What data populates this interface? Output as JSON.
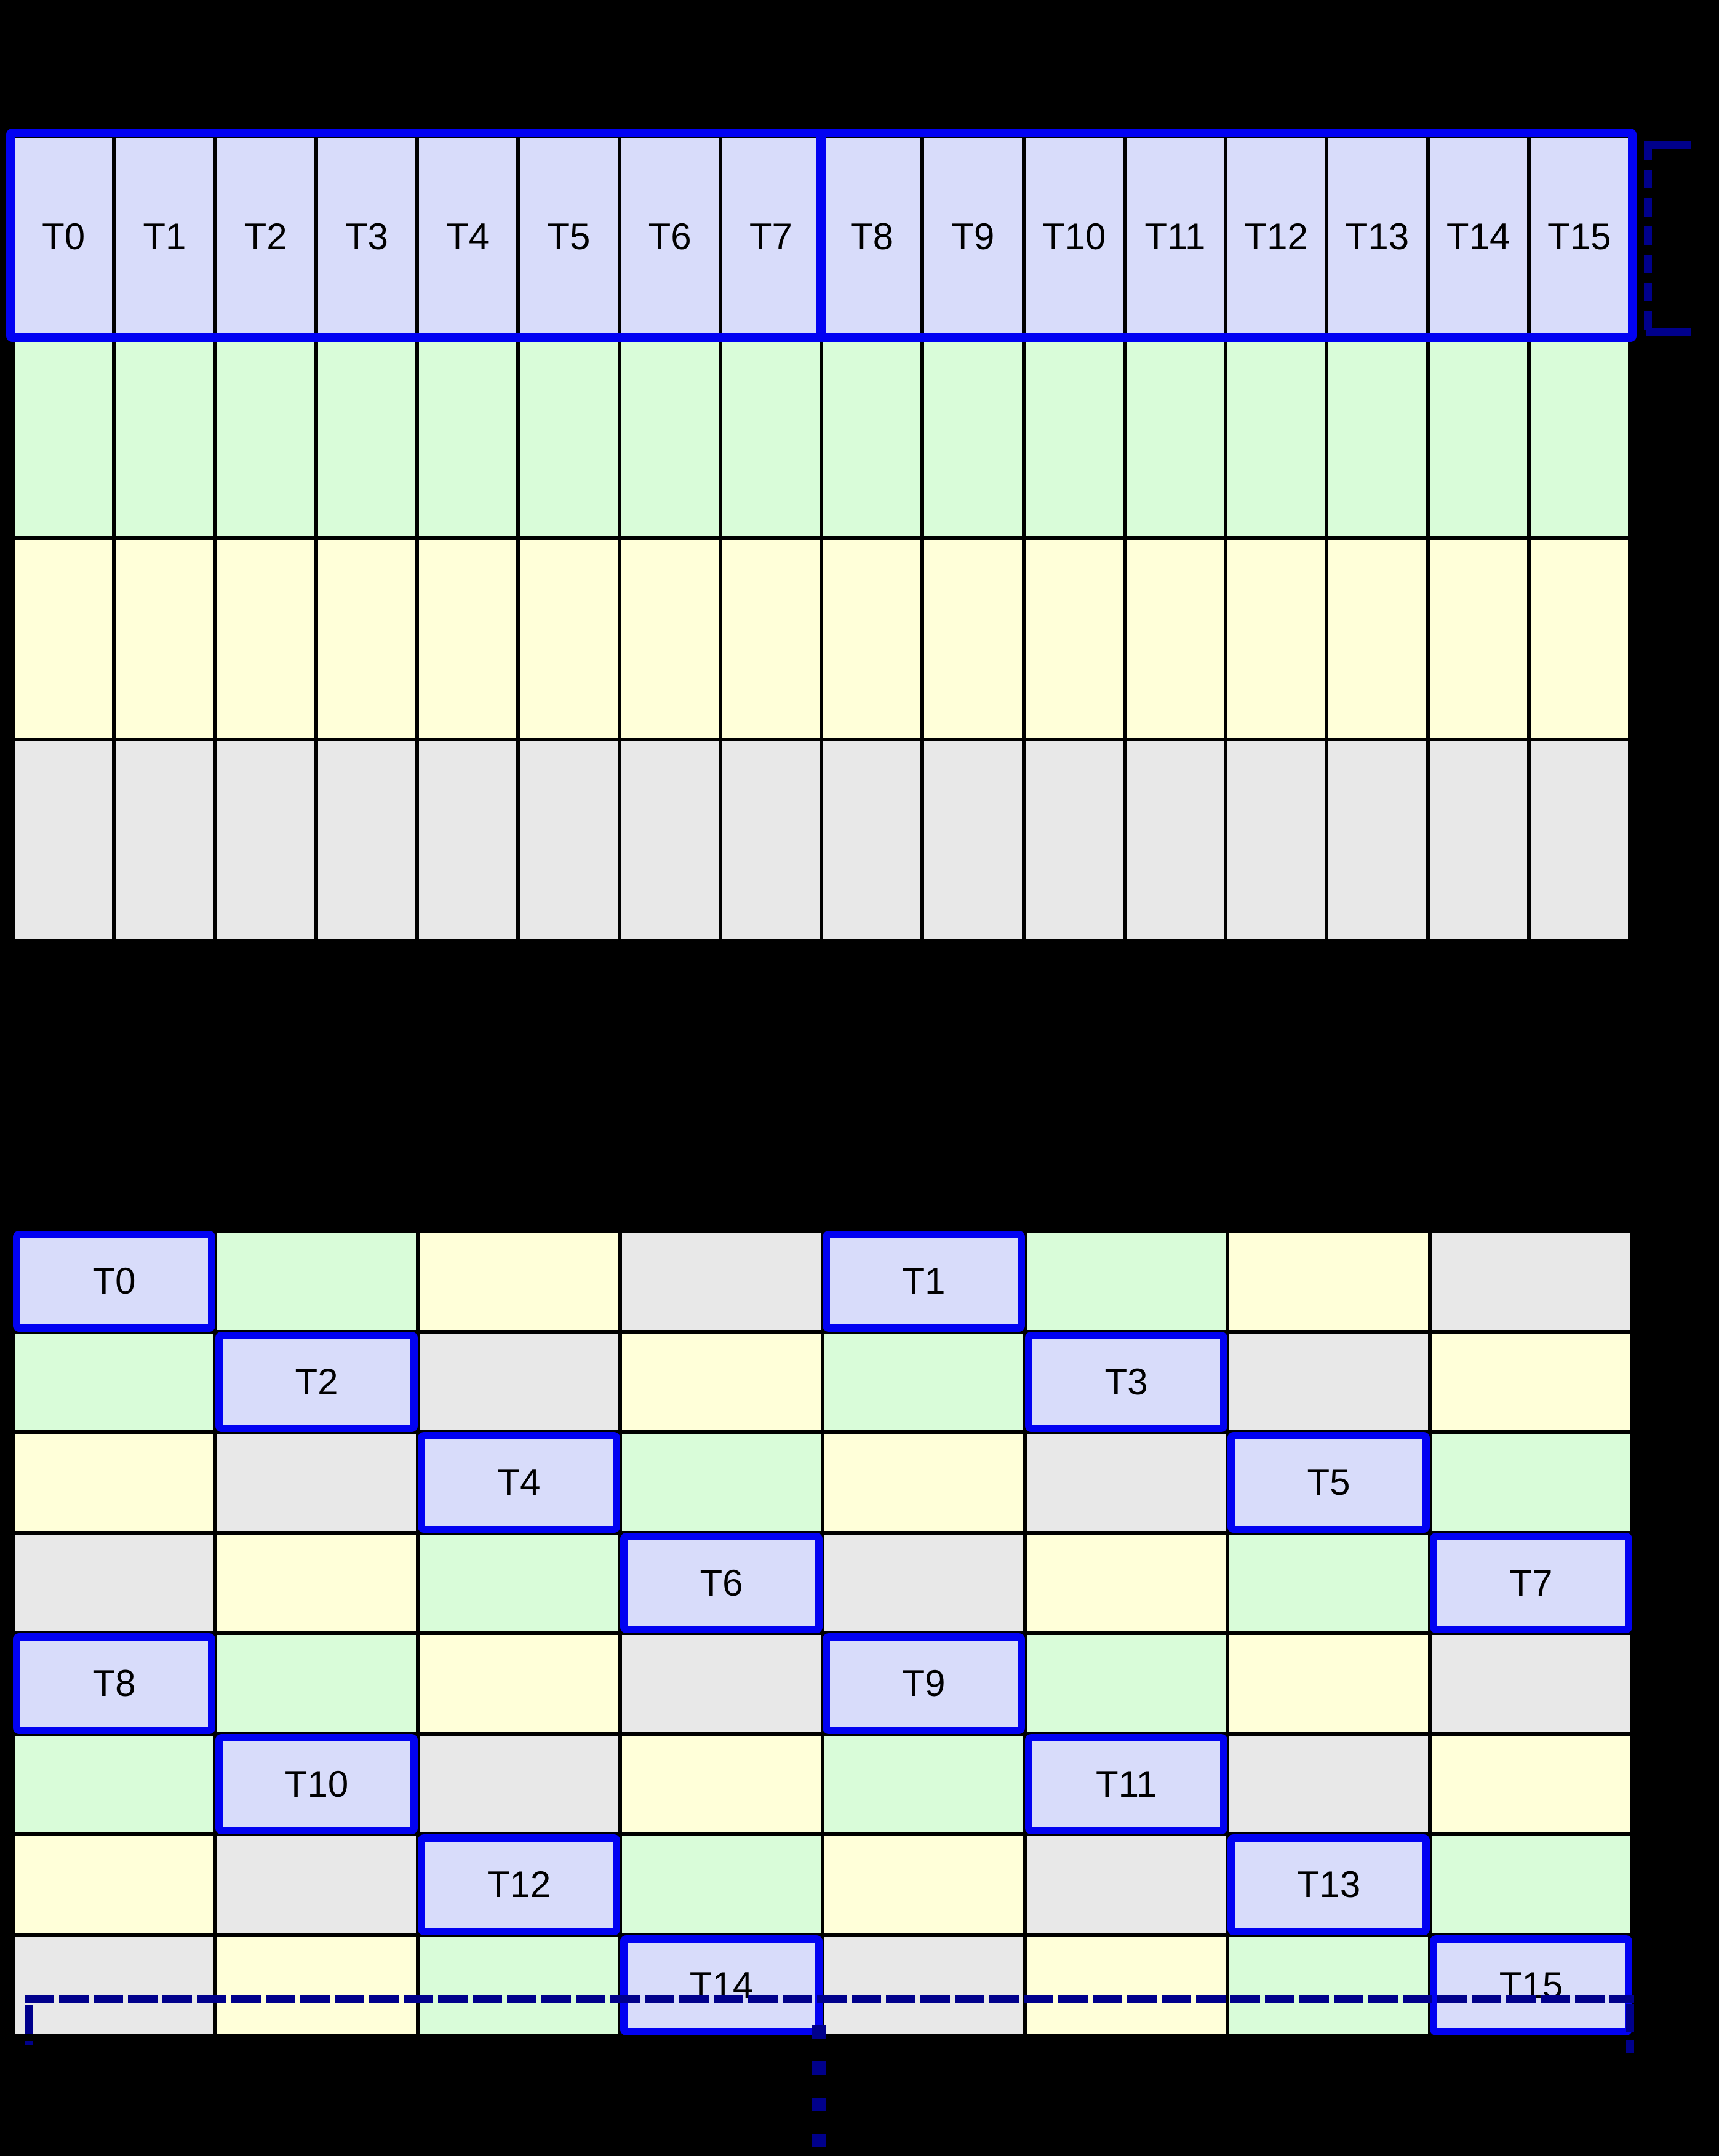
{
  "colors": {
    "thread": "#d8dcfa",
    "green": "#d9fcd9",
    "yellow": "#ffffd9",
    "gray": "#e8e8e8",
    "warp_outline_blue": "#0202f2",
    "bracket_navy": "#00008b",
    "grid_line": "#000000",
    "background": "#000000",
    "label_text": "#000000"
  },
  "top_grid": {
    "columns": 16,
    "thread_labels": [
      "T0",
      "T1",
      "T2",
      "T3",
      "T4",
      "T5",
      "T6",
      "T7",
      "T8",
      "T9",
      "T10",
      "T11",
      "T12",
      "T13",
      "T14",
      "T15"
    ],
    "warp_group_size": 8,
    "warp_group_count": 2,
    "rows": [
      {
        "name": "thread-row",
        "color": "thread"
      },
      {
        "name": "memory-row-green",
        "color": "green"
      },
      {
        "name": "memory-row-yellow",
        "color": "yellow"
      },
      {
        "name": "memory-row-gray",
        "color": "gray"
      }
    ]
  },
  "bottom_grid": {
    "columns": 8,
    "rows": [
      [
        {
          "color": "thread",
          "label": "T0"
        },
        {
          "color": "green"
        },
        {
          "color": "yellow"
        },
        {
          "color": "gray"
        },
        {
          "color": "thread",
          "label": "T1"
        },
        {
          "color": "green"
        },
        {
          "color": "yellow"
        },
        {
          "color": "gray"
        }
      ],
      [
        {
          "color": "green"
        },
        {
          "color": "thread",
          "label": "T2"
        },
        {
          "color": "gray"
        },
        {
          "color": "yellow"
        },
        {
          "color": "green"
        },
        {
          "color": "thread",
          "label": "T3"
        },
        {
          "color": "gray"
        },
        {
          "color": "yellow"
        }
      ],
      [
        {
          "color": "yellow"
        },
        {
          "color": "gray"
        },
        {
          "color": "thread",
          "label": "T4"
        },
        {
          "color": "green"
        },
        {
          "color": "yellow"
        },
        {
          "color": "gray"
        },
        {
          "color": "thread",
          "label": "T5"
        },
        {
          "color": "green"
        }
      ],
      [
        {
          "color": "gray"
        },
        {
          "color": "yellow"
        },
        {
          "color": "green"
        },
        {
          "color": "thread",
          "label": "T6"
        },
        {
          "color": "gray"
        },
        {
          "color": "yellow"
        },
        {
          "color": "green"
        },
        {
          "color": "thread",
          "label": "T7"
        }
      ],
      [
        {
          "color": "thread",
          "label": "T8"
        },
        {
          "color": "green"
        },
        {
          "color": "yellow"
        },
        {
          "color": "gray"
        },
        {
          "color": "thread",
          "label": "T9"
        },
        {
          "color": "green"
        },
        {
          "color": "yellow"
        },
        {
          "color": "gray"
        }
      ],
      [
        {
          "color": "green"
        },
        {
          "color": "thread",
          "label": "T10"
        },
        {
          "color": "gray"
        },
        {
          "color": "yellow"
        },
        {
          "color": "green"
        },
        {
          "color": "thread",
          "label": "T11"
        },
        {
          "color": "gray"
        },
        {
          "color": "yellow"
        }
      ],
      [
        {
          "color": "yellow"
        },
        {
          "color": "gray"
        },
        {
          "color": "thread",
          "label": "T12"
        },
        {
          "color": "green"
        },
        {
          "color": "yellow"
        },
        {
          "color": "gray"
        },
        {
          "color": "thread",
          "label": "T13"
        },
        {
          "color": "green"
        }
      ],
      [
        {
          "color": "gray"
        },
        {
          "color": "yellow"
        },
        {
          "color": "green"
        },
        {
          "color": "thread",
          "label": "T14"
        },
        {
          "color": "gray"
        },
        {
          "color": "yellow"
        },
        {
          "color": "green"
        },
        {
          "color": "thread",
          "label": "T15"
        }
      ]
    ]
  },
  "annotations": {
    "right_bracket_style": "dashed-navy-bracket",
    "bottom_bracket_style": "dashed-navy-bracket",
    "ellipsis_dot_count": 4
  }
}
